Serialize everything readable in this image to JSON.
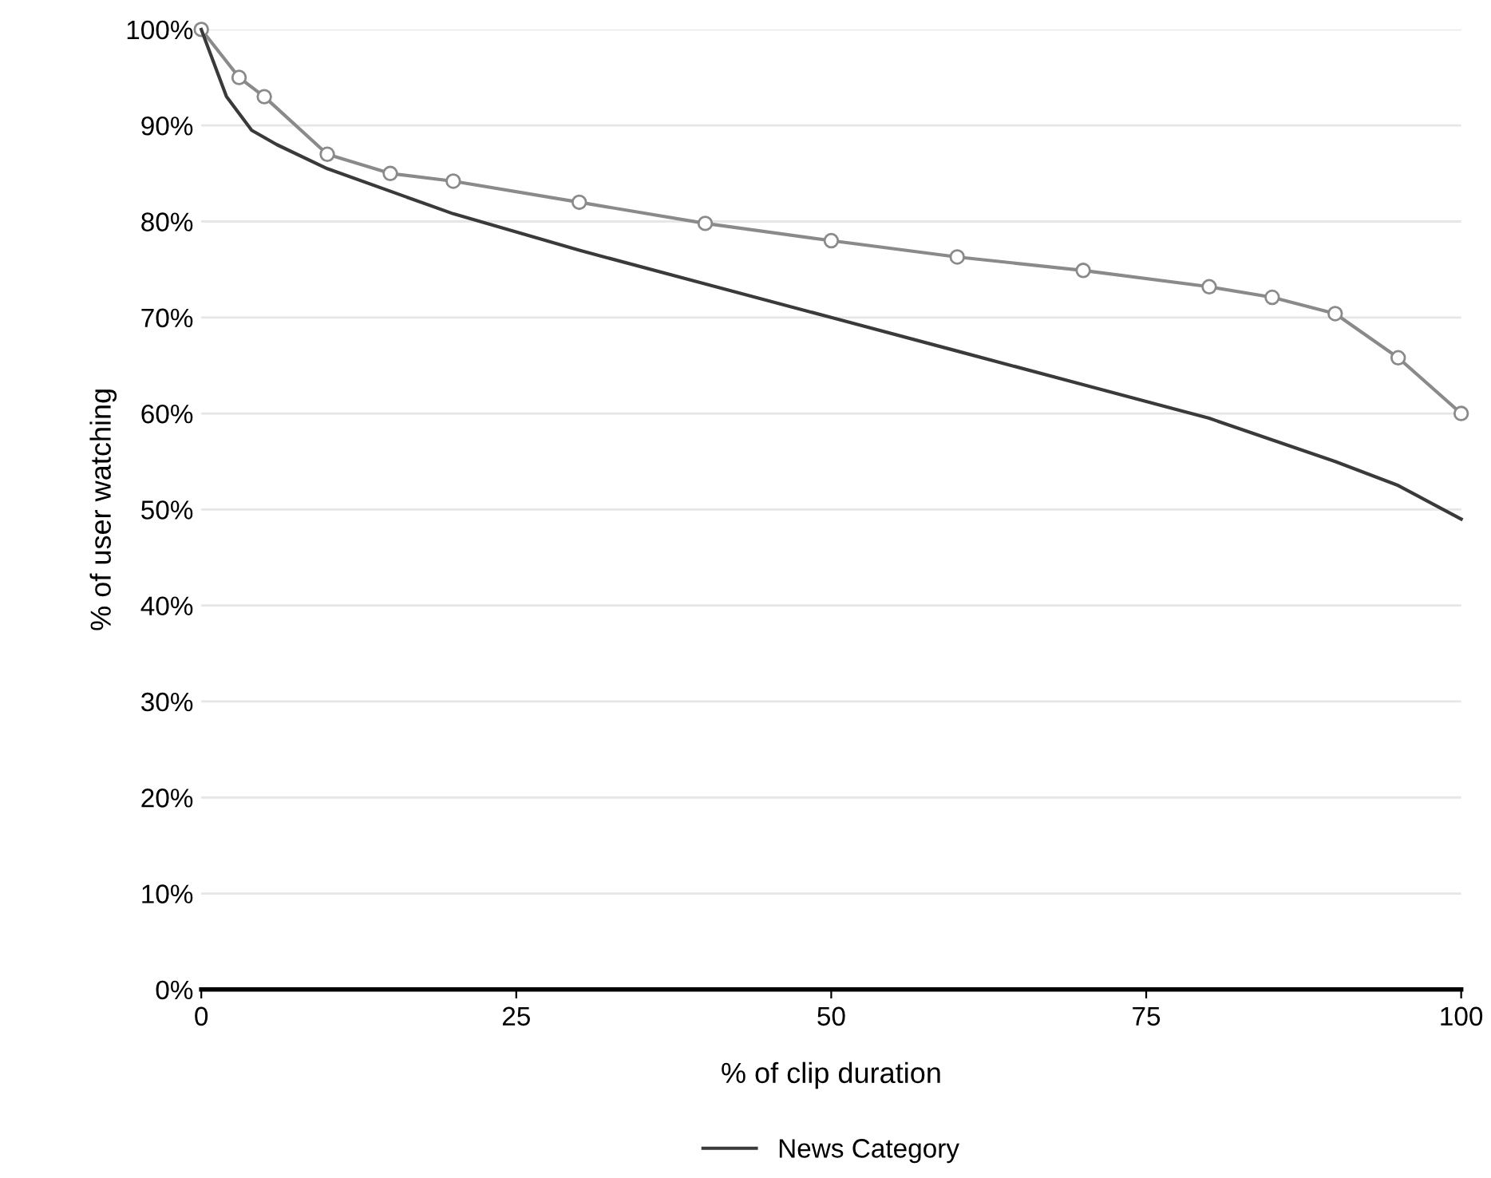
{
  "chart_data": {
    "type": "line",
    "xlabel": "% of clip duration",
    "ylabel": "% of user watching",
    "xlim": [
      0,
      100
    ],
    "xticks": [
      0,
      25,
      50,
      75,
      100
    ],
    "ylim": [
      0,
      100
    ],
    "yticks": [
      {
        "value": 0,
        "label": "0%"
      },
      {
        "value": 10,
        "label": "10%"
      },
      {
        "value": 20,
        "label": "20%"
      },
      {
        "value": 30,
        "label": "30%"
      },
      {
        "value": 40,
        "label": "40%"
      },
      {
        "value": 50,
        "label": "50%"
      },
      {
        "value": 60,
        "label": "60%"
      },
      {
        "value": 70,
        "label": "70%"
      },
      {
        "value": 80,
        "label": "80%"
      },
      {
        "value": 90,
        "label": "90%"
      },
      {
        "value": 100,
        "label": "100%"
      }
    ],
    "grid": "y",
    "legend": "bottom",
    "line_style": "solid",
    "series": [
      {
        "color": "#8a8a8a",
        "marker": "circle",
        "x": [
          0,
          3,
          5,
          10,
          15,
          20,
          30,
          40,
          50,
          60,
          70,
          80,
          85,
          90,
          95,
          100
        ],
        "values": [
          100,
          95,
          93,
          87,
          85,
          84.2,
          82,
          79.8,
          78,
          76.3,
          74.9,
          73.2,
          72.1,
          70.4,
          65.8,
          60
        ]
      },
      {
        "name": "News Category",
        "color": "#3a3a3a",
        "marker": "none",
        "x": [
          0,
          2,
          4,
          6,
          10,
          20,
          30,
          40,
          50,
          60,
          70,
          80,
          90,
          95,
          100
        ],
        "values": [
          100,
          93,
          89.5,
          88,
          85.5,
          80.8,
          77,
          73.5,
          70,
          66.5,
          63,
          59.5,
          55,
          52.5,
          49
        ]
      }
    ]
  }
}
